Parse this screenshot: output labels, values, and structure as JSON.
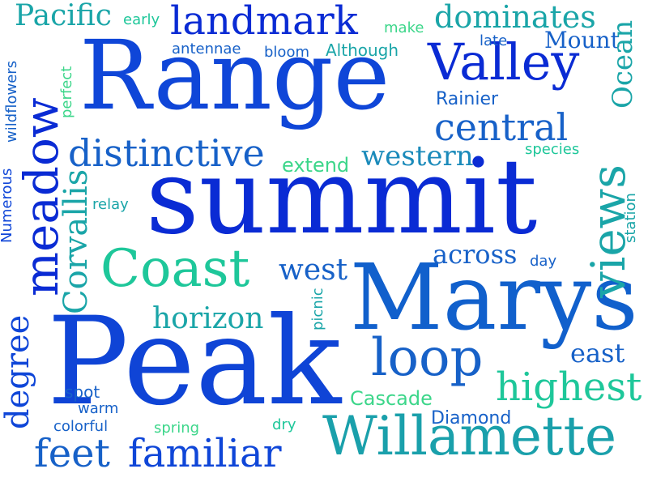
{
  "colors": {
    "background": "#ffffff",
    "blue_dark": "#0a1fd0",
    "blue": "#0f46d8",
    "blue_mid": "#1761c8",
    "teal_blue": "#1a8aba",
    "teal": "#1aa5a8",
    "green_teal": "#1ec79a",
    "light_green": "#3cd68a"
  },
  "words": {
    "range": "Range",
    "summit": "summit",
    "peak": "Peak",
    "marys": "Marys",
    "valley": "Valley",
    "coast": "Coast",
    "willamette": "Willamette",
    "landmark": "landmark",
    "distinctive": "distinctive",
    "central": "central",
    "meadow": "meadow",
    "dominates": "dominates",
    "pacific": "Pacific",
    "loop": "loop",
    "views": "views",
    "highest": "highest",
    "familiar": "familiar",
    "feet": "feet",
    "western": "western",
    "horizon": "horizon",
    "west": "west",
    "across": "across",
    "corvallis": "Corvallis",
    "ocean": "Ocean",
    "east": "east",
    "degree": "degree",
    "mount": "Mount",
    "cascade": "Cascade",
    "diamond": "Diamond",
    "rainier": "Rainier",
    "extend": "extend",
    "early": "early",
    "make": "make",
    "late": "late",
    "antennae": "antennae",
    "bloom": "bloom",
    "although": "Although",
    "wildflowers": "wildflowers",
    "numerous": "Numerous",
    "perfect": "perfect",
    "species": "species",
    "relay": "relay",
    "station": "station",
    "day": "day",
    "picnic": "picnic",
    "spot": "spot",
    "warm": "warm",
    "colorful": "colorful",
    "spring": "spring",
    "dry": "dry"
  }
}
